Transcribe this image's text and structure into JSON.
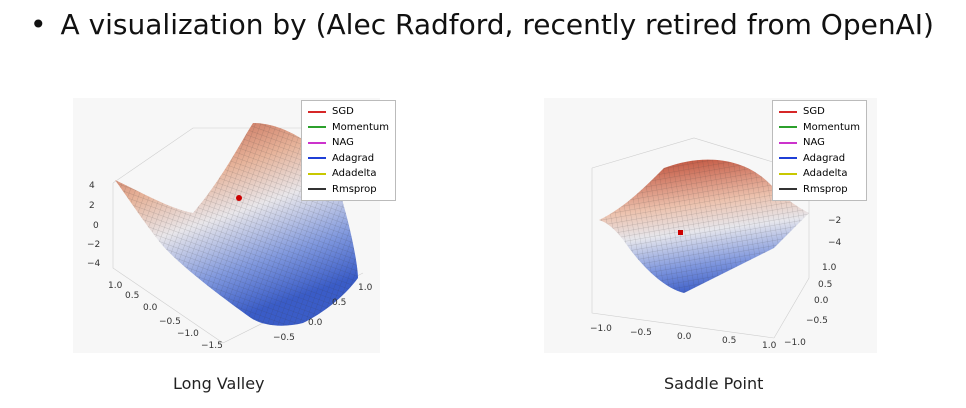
{
  "slide": {
    "bullet": "•",
    "title": "A visualization by (Alec Radford, recently retired from OpenAI)"
  },
  "figures": {
    "left": {
      "caption": "Long Valley",
      "z_ticks": [
        "4",
        "2",
        "0",
        "−2",
        "−4"
      ],
      "y_ticks": [
        "1.0",
        "0.5",
        "0.0",
        "−0.5",
        "−1.0",
        "−1.5"
      ],
      "x_ticks": [
        "1.0",
        "0.5",
        "0.0",
        "−0.5"
      ]
    },
    "right": {
      "caption": "Saddle Point",
      "z_ticks": [
        "−2",
        "−4"
      ],
      "x_ticks": [
        "−1.0",
        "−0.5",
        "0.0",
        "0.5",
        "1.0"
      ],
      "y_ticks": [
        "1.0",
        "0.5",
        "0.0",
        "−0.5",
        "−1.0"
      ]
    }
  },
  "legend": {
    "items": [
      {
        "label": "SGD",
        "color": "#d62728"
      },
      {
        "label": "Momentum",
        "color": "#2ca02c"
      },
      {
        "label": "NAG",
        "color": "#cc33cc"
      },
      {
        "label": "Adagrad",
        "color": "#1f3fd6"
      },
      {
        "label": "Adadelta",
        "color": "#c8c800"
      },
      {
        "label": "Rmsprop",
        "color": "#333333"
      }
    ]
  },
  "colors": {
    "surface_high": "#b84a35",
    "surface_mid": "#e8e0e0",
    "surface_low": "#3a5cc7",
    "marker": "#cc0000"
  }
}
